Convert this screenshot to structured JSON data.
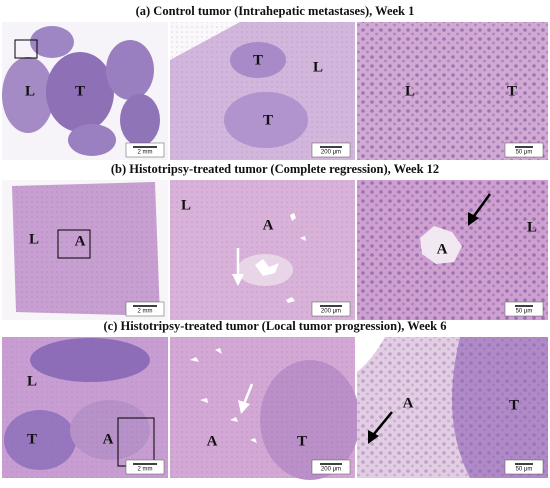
{
  "rows": [
    {
      "title": "(a) Control tumor (Intrahepatic metastases), Week 1",
      "panels": [
        {
          "labels": [
            "L",
            "T"
          ],
          "scale_bar": "2 mm"
        },
        {
          "labels": [
            "T",
            "L",
            "T"
          ],
          "scale_bar": "200 μm"
        },
        {
          "labels": [
            "L",
            "T"
          ],
          "scale_bar": "50 μm"
        }
      ]
    },
    {
      "title": "(b) Histotripsy-treated tumor (Complete regression), Week 12",
      "panels": [
        {
          "labels": [
            "L",
            "A"
          ],
          "scale_bar": "2 mm"
        },
        {
          "labels": [
            "L",
            "A"
          ],
          "scale_bar": "200 μm"
        },
        {
          "labels": [
            "A",
            "L"
          ],
          "scale_bar": "50 μm"
        }
      ]
    },
    {
      "title": "(c) Histotripsy-treated tumor (Local tumor progression), Week 6",
      "panels": [
        {
          "labels": [
            "L",
            "T",
            "A"
          ],
          "scale_bar": "2 mm"
        },
        {
          "labels": [
            "A",
            "T"
          ],
          "scale_bar": "200 μm"
        },
        {
          "labels": [
            "A",
            "T"
          ],
          "scale_bar": "50 μm"
        }
      ]
    }
  ]
}
